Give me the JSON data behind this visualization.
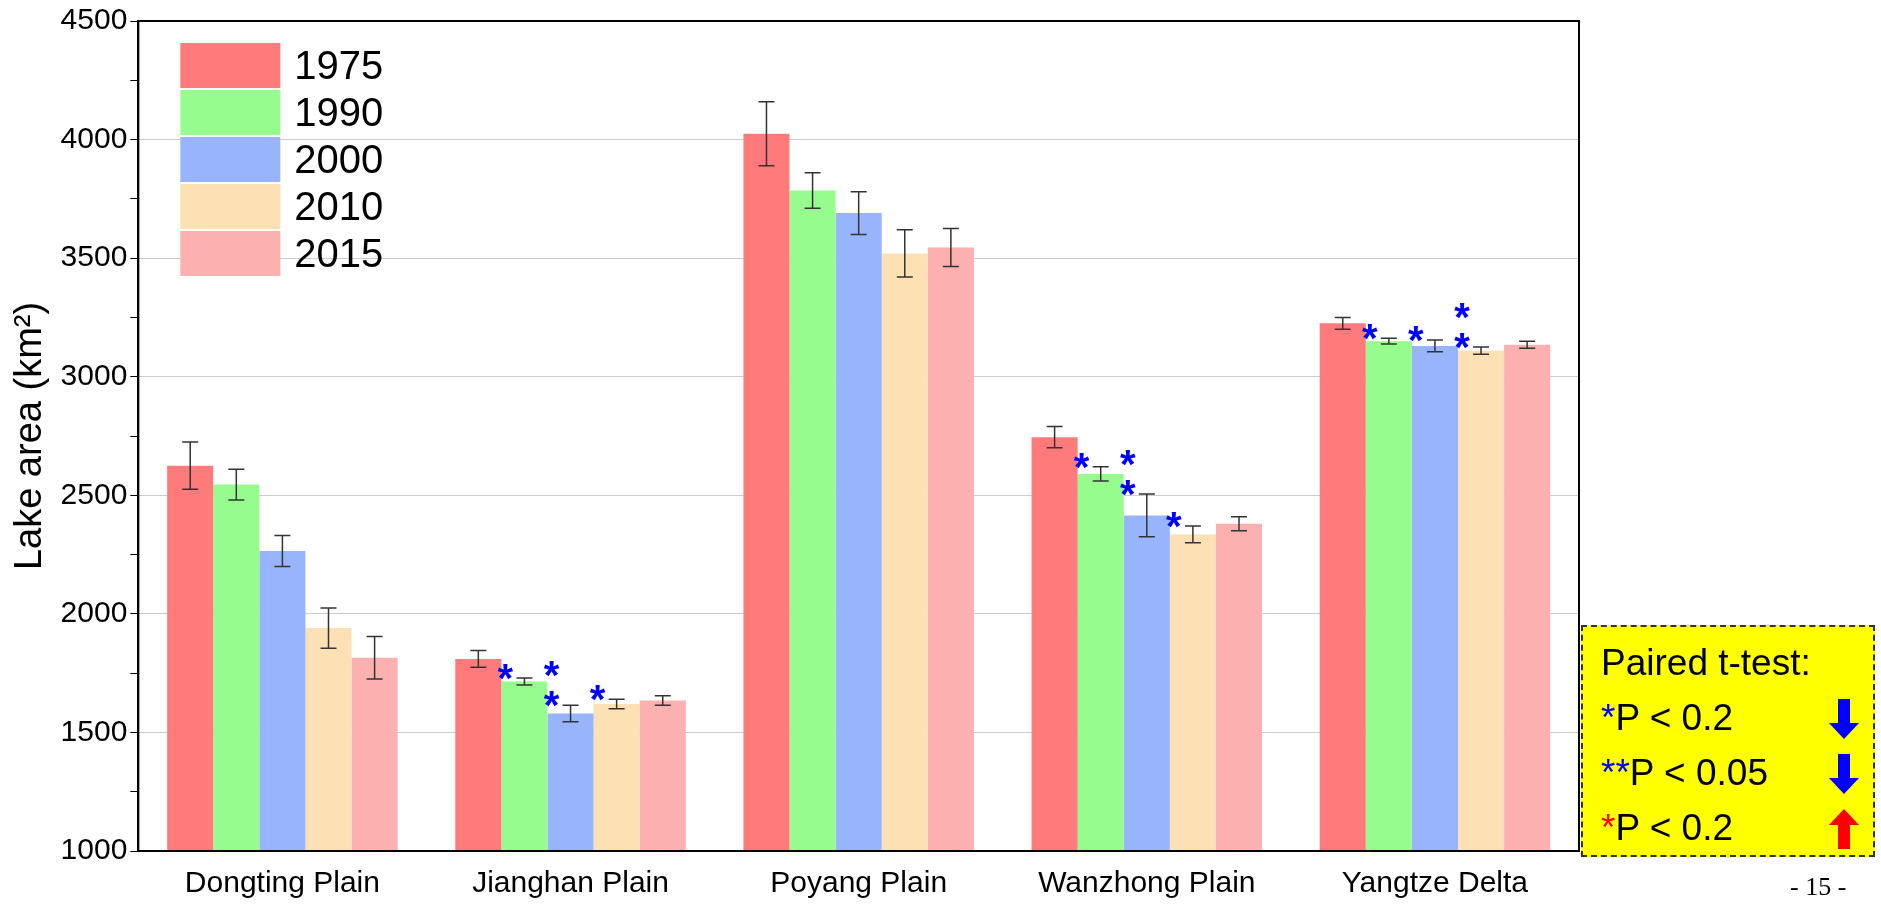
{
  "chart_data": {
    "type": "bar",
    "ylabel": "Lake area (km²)",
    "categories": [
      "Dongting Plain",
      "Jianghan Plain",
      "Poyang Plain",
      "Wanzhong Plain",
      "Yangtze Delta"
    ],
    "series": [
      {
        "name": "1975",
        "color": "#ff7b7b",
        "values": [
          2625,
          1810,
          4025,
          2745,
          3225
        ],
        "errors": [
          100,
          35,
          135,
          45,
          25
        ]
      },
      {
        "name": "1990",
        "color": "#96fc8e",
        "values": [
          2545,
          1715,
          3785,
          2590,
          3150
        ],
        "errors": [
          65,
          15,
          75,
          30,
          12
        ],
        "value_labels": [
          null,
          "*",
          null,
          "*",
          "*"
        ]
      },
      {
        "name": "2000",
        "color": "#98b4fc",
        "values": [
          2265,
          1580,
          3690,
          2415,
          3130
        ],
        "errors": [
          65,
          35,
          90,
          90,
          25
        ],
        "value_labels": [
          null,
          "**",
          null,
          "**",
          "*"
        ]
      },
      {
        "name": "2010",
        "color": "#fde0b4",
        "values": [
          1940,
          1620,
          3520,
          2335,
          3110
        ],
        "errors": [
          85,
          20,
          100,
          35,
          15
        ],
        "value_labels": [
          null,
          "*",
          null,
          "*",
          "**"
        ]
      },
      {
        "name": "2015",
        "color": "#fcb0b0",
        "values": [
          1815,
          1635,
          3545,
          2380,
          3135
        ],
        "errors": [
          90,
          20,
          80,
          30,
          15
        ]
      }
    ],
    "ylim": [
      1000,
      4500
    ],
    "yticks": [
      1000,
      {
        "value": 1250,
        "label": null
      },
      1500,
      {
        "value": 1750,
        "label": null
      },
      2000,
      {
        "value": 2250,
        "label": null
      },
      2500,
      {
        "value": 2750,
        "label": null
      },
      3000,
      {
        "value": 3250,
        "label": null
      },
      3500,
      {
        "value": 3750,
        "label": null
      },
      4000,
      {
        "value": 4250,
        "label": null
      },
      4500
    ],
    "grid": "y",
    "legend": "top left",
    "annotations": [
      "Paired t-test:",
      "*P < 0.2",
      "**P < 0.05",
      "*P < 0.2",
      "- 15 -"
    ]
  }
}
